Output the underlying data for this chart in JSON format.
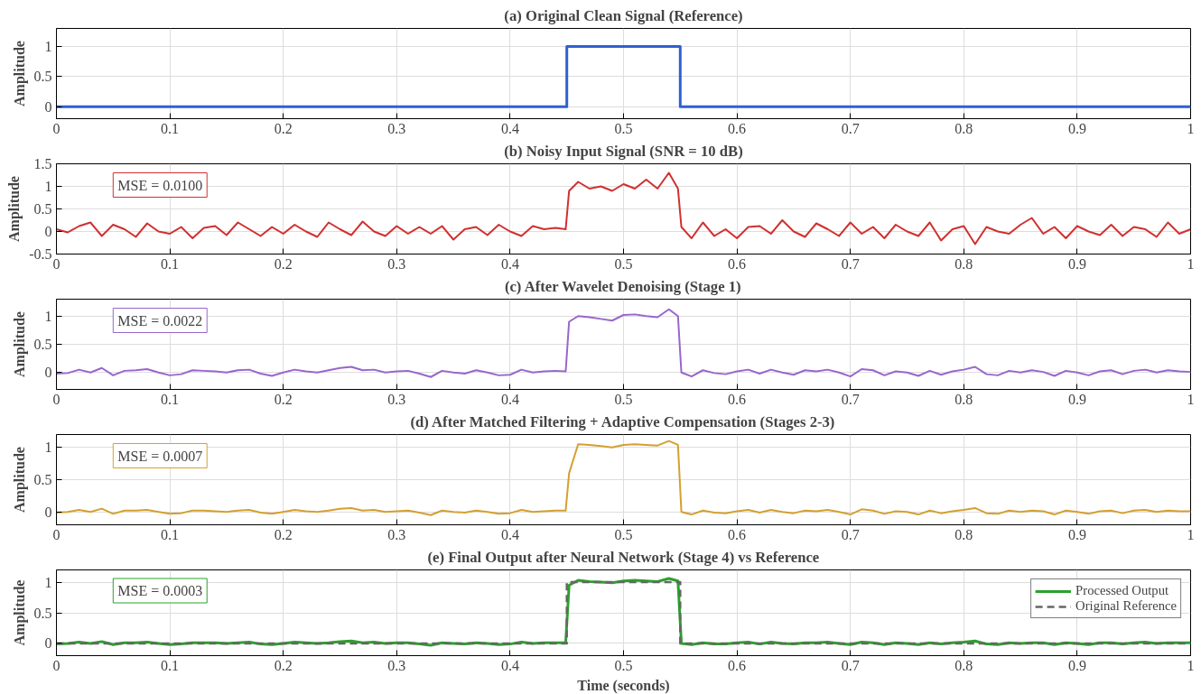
{
  "chart_data": [
    {
      "type": "line",
      "title": "(a) Original Clean Signal (Reference)",
      "ylabel": "Amplitude",
      "xlim": [
        0,
        1
      ],
      "ylim": [
        -0.2,
        1.3
      ],
      "xticks": [
        0,
        0.1,
        0.2,
        0.3,
        0.4,
        0.5,
        0.6,
        0.7,
        0.8,
        0.9,
        1
      ],
      "yticks": [
        0,
        0.5,
        1
      ],
      "grid": true,
      "marker": "none",
      "line_style": "solid",
      "series": [
        {
          "color": "#3060d0",
          "x": [
            0,
            0.45,
            0.45,
            0.55,
            0.55,
            1
          ],
          "values": [
            0,
            0,
            1,
            1,
            0,
            0
          ]
        }
      ]
    },
    {
      "type": "line",
      "title": "(b) Noisy Input Signal (SNR = 10 dB)",
      "ylabel": "Amplitude",
      "xlim": [
        0,
        1
      ],
      "ylim": [
        -0.5,
        1.5
      ],
      "xticks": [
        0,
        0.1,
        0.2,
        0.3,
        0.4,
        0.5,
        0.6,
        0.7,
        0.8,
        0.9,
        1
      ],
      "yticks": [
        -0.5,
        0,
        0.5,
        1,
        1.5
      ],
      "grid": true,
      "marker": "none",
      "line_style": "solid",
      "annotations": [
        "MSE = 0.0100"
      ],
      "series": [
        {
          "color": "#d03030",
          "x": [
            0,
            0.01,
            0.02,
            0.03,
            0.04,
            0.05,
            0.06,
            0.07,
            0.08,
            0.09,
            0.1,
            0.11,
            0.12,
            0.13,
            0.14,
            0.15,
            0.16,
            0.17,
            0.18,
            0.19,
            0.2,
            0.21,
            0.22,
            0.23,
            0.24,
            0.25,
            0.26,
            0.27,
            0.28,
            0.29,
            0.3,
            0.31,
            0.32,
            0.33,
            0.34,
            0.35,
            0.36,
            0.37,
            0.38,
            0.39,
            0.4,
            0.41,
            0.42,
            0.43,
            0.44,
            0.449,
            0.452,
            0.46,
            0.47,
            0.48,
            0.49,
            0.5,
            0.51,
            0.52,
            0.53,
            0.54,
            0.548,
            0.551,
            0.56,
            0.57,
            0.58,
            0.59,
            0.6,
            0.61,
            0.62,
            0.63,
            0.64,
            0.65,
            0.66,
            0.67,
            0.68,
            0.69,
            0.7,
            0.71,
            0.72,
            0.73,
            0.74,
            0.75,
            0.76,
            0.77,
            0.78,
            0.79,
            0.8,
            0.81,
            0.82,
            0.83,
            0.84,
            0.85,
            0.86,
            0.87,
            0.88,
            0.89,
            0.9,
            0.91,
            0.92,
            0.93,
            0.94,
            0.95,
            0.96,
            0.97,
            0.98,
            0.99,
            1
          ],
          "values": [
            0.05,
            -0.02,
            0.12,
            0.2,
            -0.1,
            0.15,
            0.05,
            -0.12,
            0.18,
            0.0,
            -0.05,
            0.1,
            -0.15,
            0.08,
            0.12,
            -0.08,
            0.2,
            0.05,
            -0.1,
            0.1,
            -0.05,
            0.15,
            0.0,
            -0.12,
            0.2,
            0.05,
            -0.08,
            0.22,
            0.0,
            -0.1,
            0.12,
            -0.05,
            0.1,
            -0.05,
            0.12,
            -0.18,
            0.05,
            0.1,
            -0.08,
            0.15,
            0.0,
            -0.1,
            0.12,
            0.05,
            0.08,
            0.05,
            0.9,
            1.1,
            0.95,
            1.0,
            0.9,
            1.05,
            0.95,
            1.15,
            0.95,
            1.3,
            0.95,
            0.1,
            -0.15,
            0.2,
            -0.1,
            0.05,
            -0.15,
            0.1,
            0.12,
            -0.05,
            0.25,
            0.0,
            -0.12,
            0.18,
            0.05,
            -0.1,
            0.2,
            -0.05,
            0.1,
            -0.15,
            0.15,
            0.0,
            -0.1,
            0.2,
            -0.2,
            0.05,
            0.12,
            -0.28,
            0.1,
            0.0,
            -0.05,
            0.15,
            0.3,
            -0.05,
            0.1,
            -0.15,
            0.12,
            0.0,
            -0.08,
            0.15,
            -0.1,
            0.1,
            0.05,
            -0.12,
            0.2,
            -0.05,
            0.05
          ]
        }
      ]
    },
    {
      "type": "line",
      "title": "(c) After Wavelet Denoising (Stage 1)",
      "ylabel": "Amplitude",
      "xlim": [
        0,
        1
      ],
      "ylim": [
        -0.3,
        1.3
      ],
      "xticks": [
        0,
        0.1,
        0.2,
        0.3,
        0.4,
        0.5,
        0.6,
        0.7,
        0.8,
        0.9,
        1
      ],
      "yticks": [
        0,
        0.5,
        1
      ],
      "grid": true,
      "marker": "none",
      "line_style": "solid",
      "annotations": [
        "MSE = 0.0022"
      ],
      "series": [
        {
          "color": "#9966cc",
          "x": [
            0,
            0.01,
            0.02,
            0.03,
            0.04,
            0.05,
            0.06,
            0.07,
            0.08,
            0.09,
            0.1,
            0.11,
            0.12,
            0.13,
            0.14,
            0.15,
            0.16,
            0.17,
            0.18,
            0.19,
            0.2,
            0.21,
            0.22,
            0.23,
            0.24,
            0.25,
            0.26,
            0.27,
            0.28,
            0.29,
            0.3,
            0.31,
            0.32,
            0.33,
            0.34,
            0.35,
            0.36,
            0.37,
            0.38,
            0.39,
            0.4,
            0.41,
            0.42,
            0.43,
            0.44,
            0.449,
            0.452,
            0.46,
            0.47,
            0.48,
            0.49,
            0.5,
            0.51,
            0.52,
            0.53,
            0.54,
            0.548,
            0.551,
            0.56,
            0.57,
            0.58,
            0.59,
            0.6,
            0.61,
            0.62,
            0.63,
            0.64,
            0.65,
            0.66,
            0.67,
            0.68,
            0.69,
            0.7,
            0.71,
            0.72,
            0.73,
            0.74,
            0.75,
            0.76,
            0.77,
            0.78,
            0.79,
            0.8,
            0.81,
            0.82,
            0.83,
            0.84,
            0.85,
            0.86,
            0.87,
            0.88,
            0.89,
            0.9,
            0.91,
            0.92,
            0.93,
            0.94,
            0.95,
            0.96,
            0.97,
            0.98,
            0.99,
            1
          ],
          "values": [
            -0.02,
            -0.01,
            0.05,
            0.0,
            0.08,
            -0.05,
            0.03,
            0.04,
            0.06,
            0.0,
            -0.05,
            -0.03,
            0.04,
            0.03,
            0.02,
            0.0,
            0.04,
            0.05,
            -0.02,
            -0.06,
            0.0,
            0.05,
            0.02,
            0.0,
            0.04,
            0.08,
            0.1,
            0.04,
            0.05,
            0.0,
            0.02,
            0.03,
            -0.02,
            -0.08,
            0.03,
            0.0,
            -0.02,
            0.04,
            0.0,
            -0.05,
            -0.04,
            0.05,
            0.0,
            0.02,
            0.03,
            0.02,
            0.9,
            1.0,
            0.98,
            0.95,
            0.92,
            1.02,
            1.03,
            1.0,
            0.98,
            1.12,
            1.0,
            0.0,
            -0.07,
            0.04,
            -0.01,
            -0.03,
            0.02,
            0.05,
            -0.02,
            0.05,
            0.0,
            -0.04,
            0.04,
            0.02,
            0.05,
            0.0,
            -0.07,
            0.06,
            0.04,
            -0.05,
            0.02,
            0.0,
            -0.06,
            0.03,
            -0.04,
            0.02,
            0.05,
            0.1,
            -0.03,
            -0.05,
            0.03,
            0.0,
            0.04,
            0.01,
            -0.06,
            0.03,
            0.0,
            -0.05,
            0.02,
            0.04,
            -0.03,
            0.03,
            0.05,
            0.0,
            0.04,
            0.02,
            0.01
          ]
        }
      ]
    },
    {
      "type": "line",
      "title": "(d) After Matched Filtering + Adaptive Compensation (Stages 2-3)",
      "ylabel": "Amplitude",
      "xlim": [
        0,
        1
      ],
      "ylim": [
        -0.2,
        1.2
      ],
      "xticks": [
        0,
        0.1,
        0.2,
        0.3,
        0.4,
        0.5,
        0.6,
        0.7,
        0.8,
        0.9,
        1
      ],
      "yticks": [
        0,
        0.5,
        1
      ],
      "grid": true,
      "marker": "none",
      "line_style": "solid",
      "annotations": [
        "MSE = 0.0007"
      ],
      "series": [
        {
          "color": "#d4a030",
          "x": [
            0,
            0.01,
            0.02,
            0.03,
            0.04,
            0.05,
            0.06,
            0.07,
            0.08,
            0.09,
            0.1,
            0.11,
            0.12,
            0.13,
            0.14,
            0.15,
            0.16,
            0.17,
            0.18,
            0.19,
            0.2,
            0.21,
            0.22,
            0.23,
            0.24,
            0.25,
            0.26,
            0.27,
            0.28,
            0.29,
            0.3,
            0.31,
            0.32,
            0.33,
            0.34,
            0.35,
            0.36,
            0.37,
            0.38,
            0.39,
            0.4,
            0.41,
            0.42,
            0.43,
            0.44,
            0.449,
            0.452,
            0.46,
            0.47,
            0.48,
            0.49,
            0.5,
            0.51,
            0.52,
            0.53,
            0.54,
            0.548,
            0.551,
            0.56,
            0.57,
            0.58,
            0.59,
            0.6,
            0.61,
            0.62,
            0.63,
            0.64,
            0.65,
            0.66,
            0.67,
            0.68,
            0.69,
            0.7,
            0.71,
            0.72,
            0.73,
            0.74,
            0.75,
            0.76,
            0.77,
            0.78,
            0.79,
            0.8,
            0.81,
            0.82,
            0.83,
            0.84,
            0.85,
            0.86,
            0.87,
            0.88,
            0.89,
            0.9,
            0.91,
            0.92,
            0.93,
            0.94,
            0.95,
            0.96,
            0.97,
            0.98,
            0.99,
            1
          ],
          "values": [
            -0.01,
            0.0,
            0.03,
            0.0,
            0.05,
            -0.03,
            0.02,
            0.02,
            0.03,
            0.0,
            -0.03,
            -0.02,
            0.02,
            0.02,
            0.01,
            0.0,
            0.02,
            0.03,
            -0.01,
            -0.03,
            0.0,
            0.03,
            0.01,
            0.0,
            0.02,
            0.05,
            0.06,
            0.02,
            0.03,
            0.0,
            0.01,
            0.02,
            -0.01,
            -0.05,
            0.02,
            0.0,
            -0.01,
            0.02,
            0.0,
            -0.03,
            -0.02,
            0.03,
            0.0,
            0.01,
            0.02,
            0.02,
            0.6,
            1.05,
            1.04,
            1.02,
            1.0,
            1.04,
            1.05,
            1.04,
            1.03,
            1.1,
            1.04,
            0.0,
            -0.04,
            0.02,
            -0.01,
            -0.02,
            0.01,
            0.03,
            -0.01,
            0.03,
            0.0,
            -0.02,
            0.02,
            0.01,
            0.03,
            0.0,
            -0.04,
            0.04,
            0.02,
            -0.03,
            0.01,
            0.0,
            -0.04,
            0.02,
            -0.02,
            0.01,
            0.03,
            0.06,
            -0.02,
            -0.03,
            0.02,
            0.0,
            0.02,
            0.01,
            -0.04,
            0.02,
            0.0,
            -0.03,
            0.01,
            0.02,
            -0.02,
            0.02,
            0.03,
            0.0,
            0.02,
            0.01,
            0.01
          ]
        }
      ]
    },
    {
      "type": "line",
      "title": "(e) Final Output after Neural Network (Stage 4) vs Reference",
      "xlabel": "Time (seconds)",
      "ylabel": "Amplitude",
      "xlim": [
        0,
        1
      ],
      "ylim": [
        -0.2,
        1.2
      ],
      "xticks": [
        0,
        0.1,
        0.2,
        0.3,
        0.4,
        0.5,
        0.6,
        0.7,
        0.8,
        0.9,
        1
      ],
      "yticks": [
        0,
        0.5,
        1
      ],
      "grid": true,
      "marker": "none",
      "line_style": "solid",
      "legend": "top right",
      "annotations": [
        "MSE = 0.0003"
      ],
      "series": [
        {
          "name": "Processed Output",
          "color": "#2ca02c",
          "x": [
            0,
            0.01,
            0.02,
            0.03,
            0.04,
            0.05,
            0.06,
            0.07,
            0.08,
            0.09,
            0.1,
            0.11,
            0.12,
            0.13,
            0.14,
            0.15,
            0.16,
            0.17,
            0.18,
            0.19,
            0.2,
            0.21,
            0.22,
            0.23,
            0.24,
            0.25,
            0.26,
            0.27,
            0.28,
            0.29,
            0.3,
            0.31,
            0.32,
            0.33,
            0.34,
            0.35,
            0.36,
            0.37,
            0.38,
            0.39,
            0.4,
            0.41,
            0.42,
            0.43,
            0.44,
            0.449,
            0.452,
            0.46,
            0.47,
            0.48,
            0.49,
            0.5,
            0.51,
            0.52,
            0.53,
            0.54,
            0.548,
            0.551,
            0.56,
            0.57,
            0.58,
            0.59,
            0.6,
            0.61,
            0.62,
            0.63,
            0.64,
            0.65,
            0.66,
            0.67,
            0.68,
            0.69,
            0.7,
            0.71,
            0.72,
            0.73,
            0.74,
            0.75,
            0.76,
            0.77,
            0.78,
            0.79,
            0.8,
            0.81,
            0.82,
            0.83,
            0.84,
            0.85,
            0.86,
            0.87,
            0.88,
            0.89,
            0.9,
            0.91,
            0.92,
            0.93,
            0.94,
            0.95,
            0.96,
            0.97,
            0.98,
            0.99,
            1
          ],
          "values": [
            -0.01,
            0.0,
            0.02,
            0.0,
            0.03,
            -0.02,
            0.01,
            0.01,
            0.02,
            0.0,
            -0.02,
            -0.01,
            0.01,
            0.01,
            0.01,
            0.0,
            0.01,
            0.02,
            -0.01,
            -0.02,
            0.0,
            0.02,
            0.01,
            0.0,
            0.01,
            0.03,
            0.04,
            0.01,
            0.02,
            0.0,
            0.01,
            0.01,
            -0.01,
            -0.03,
            0.01,
            0.0,
            -0.01,
            0.01,
            0.0,
            -0.02,
            -0.01,
            0.02,
            0.0,
            0.01,
            0.01,
            0.01,
            0.95,
            1.03,
            1.01,
            1.0,
            0.99,
            1.02,
            1.03,
            1.02,
            1.01,
            1.06,
            1.02,
            0.0,
            -0.02,
            0.01,
            -0.01,
            -0.01,
            0.01,
            0.02,
            -0.01,
            0.02,
            0.0,
            -0.01,
            0.01,
            0.01,
            0.02,
            0.0,
            -0.02,
            0.02,
            0.01,
            -0.02,
            0.01,
            0.0,
            -0.02,
            0.01,
            -0.01,
            0.01,
            0.02,
            0.04,
            -0.01,
            -0.02,
            0.01,
            0.0,
            0.01,
            0.01,
            -0.02,
            0.01,
            0.0,
            -0.02,
            0.01,
            0.01,
            -0.01,
            0.01,
            0.02,
            0.0,
            0.01,
            0.01,
            0.01
          ]
        },
        {
          "name": "Original Reference",
          "color": "#666666",
          "line_style": "dashed",
          "x": [
            0,
            0.45,
            0.45,
            0.55,
            0.55,
            1
          ],
          "values": [
            0,
            0,
            1,
            1,
            0,
            0
          ]
        }
      ]
    }
  ]
}
